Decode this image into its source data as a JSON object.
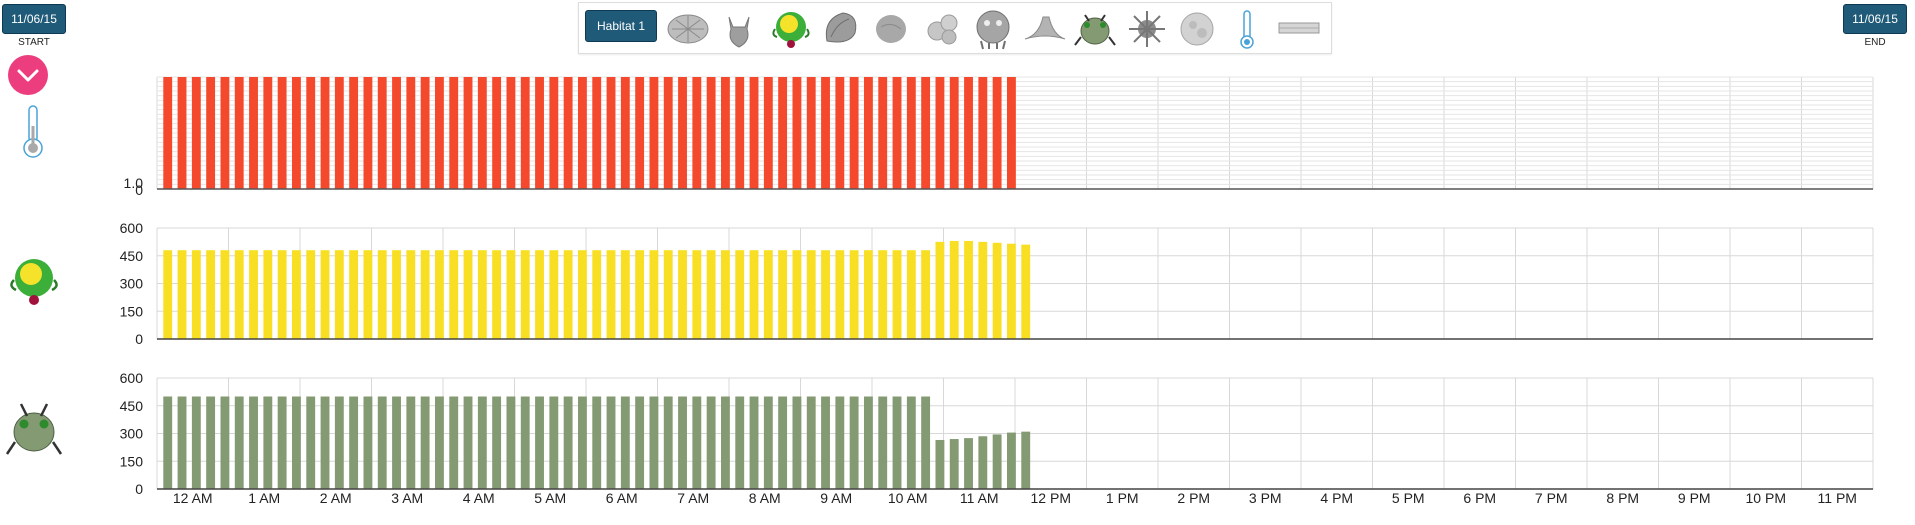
{
  "start": {
    "date": "11/06/15",
    "caption": "START"
  },
  "end": {
    "date": "11/06/15",
    "caption": "END"
  },
  "toolbar": {
    "habitat_label": "Habitat 1",
    "icons": [
      "diatom-icon",
      "copepod-icon",
      "green-alga-icon",
      "shell-icon",
      "gray-blob-icon",
      "colony-icon",
      "rotifer-icon",
      "hat-icon",
      "beetle-icon",
      "spiky-icon",
      "round-cell-icon",
      "thermometer-icon",
      "strip-icon"
    ]
  },
  "colors": {
    "temperature": "#f4492c",
    "alga": "#f9df24",
    "beetle": "#839a73",
    "button": "#1f5a78",
    "dropdown": "#ec3e7e"
  },
  "chart_data": [
    {
      "type": "bar",
      "series_icon": "thermometer-icon",
      "color": "#f4492c",
      "ylim": [
        0,
        1.0
      ],
      "yticks": [
        "0",
        "1.0"
      ],
      "grid": true,
      "x_labels": [
        "12 AM",
        "1 AM",
        "2 AM",
        "3 AM",
        "4 AM",
        "5 AM",
        "6 AM",
        "7 AM",
        "8 AM",
        "9 AM",
        "10 AM",
        "11 AM",
        "12 PM",
        "1 PM",
        "2 PM",
        "3 PM",
        "4 PM",
        "5 PM",
        "6 PM",
        "7 PM",
        "8 PM",
        "9 PM",
        "10 PM",
        "11 PM"
      ],
      "values": [
        1,
        1,
        1,
        1,
        1,
        1,
        1,
        1,
        1,
        1,
        1,
        1,
        1,
        1,
        1,
        1,
        1,
        1,
        1,
        1,
        1,
        1,
        1,
        1,
        1,
        1,
        1,
        1,
        1,
        1,
        1,
        1,
        1,
        1,
        1,
        1,
        1,
        1,
        1,
        1,
        1,
        1,
        1,
        1,
        1,
        1,
        1,
        1,
        1,
        1,
        1,
        1,
        1,
        1,
        1,
        1,
        1,
        1,
        1,
        1
      ]
    },
    {
      "type": "bar",
      "series_icon": "green-alga-icon",
      "color": "#f9df24",
      "ylim": [
        0,
        600
      ],
      "yticks": [
        "0",
        "150",
        "300",
        "450",
        "600"
      ],
      "grid": true,
      "x_labels": [
        "12 AM",
        "1 AM",
        "2 AM",
        "3 AM",
        "4 AM",
        "5 AM",
        "6 AM",
        "7 AM",
        "8 AM",
        "9 AM",
        "10 AM",
        "11 AM",
        "12 PM",
        "1 PM",
        "2 PM",
        "3 PM",
        "4 PM",
        "5 PM",
        "6 PM",
        "7 PM",
        "8 PM",
        "9 PM",
        "10 PM",
        "11 PM"
      ],
      "values": [
        480,
        480,
        480,
        480,
        480,
        480,
        480,
        480,
        480,
        480,
        480,
        480,
        480,
        480,
        480,
        480,
        480,
        480,
        480,
        480,
        480,
        480,
        480,
        480,
        480,
        480,
        480,
        480,
        480,
        480,
        480,
        480,
        480,
        480,
        480,
        480,
        480,
        480,
        480,
        480,
        480,
        480,
        480,
        480,
        480,
        480,
        480,
        480,
        480,
        480,
        480,
        480,
        480,
        480,
        525,
        530,
        530,
        525,
        520,
        515,
        510
      ]
    },
    {
      "type": "bar",
      "series_icon": "beetle-icon",
      "color": "#839a73",
      "ylim": [
        0,
        600
      ],
      "yticks": [
        "0",
        "150",
        "300",
        "450",
        "600"
      ],
      "grid": true,
      "x_labels": [
        "12 AM",
        "1 AM",
        "2 AM",
        "3 AM",
        "4 AM",
        "5 AM",
        "6 AM",
        "7 AM",
        "8 AM",
        "9 AM",
        "10 AM",
        "11 AM",
        "12 PM",
        "1 PM",
        "2 PM",
        "3 PM",
        "4 PM",
        "5 PM",
        "6 PM",
        "7 PM",
        "8 PM",
        "9 PM",
        "10 PM",
        "11 PM"
      ],
      "values": [
        500,
        500,
        500,
        500,
        500,
        500,
        500,
        500,
        500,
        500,
        500,
        500,
        500,
        500,
        500,
        500,
        500,
        500,
        500,
        500,
        500,
        500,
        500,
        500,
        500,
        500,
        500,
        500,
        500,
        500,
        500,
        500,
        500,
        500,
        500,
        500,
        500,
        500,
        500,
        500,
        500,
        500,
        500,
        500,
        500,
        500,
        500,
        500,
        500,
        500,
        500,
        500,
        500,
        500,
        265,
        270,
        275,
        285,
        295,
        305,
        310
      ]
    }
  ]
}
